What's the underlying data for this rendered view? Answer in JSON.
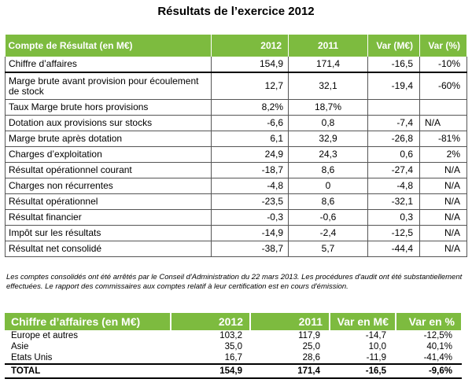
{
  "title": "Résultats de l’exercice 2012",
  "table1": {
    "headers": [
      "Compte de Résultat (en M€)",
      "2012",
      "2011",
      "Var (M€)",
      "Var (%)"
    ],
    "rows": [
      {
        "label": "Chiffre d’affaires",
        "v2012": "154,9",
        "v2011": "171,4",
        "var_m": "-16,5",
        "var_pct": "-10%"
      },
      {
        "label": "Marge brute avant provision pour écoulement de stock",
        "v2012": "12,7",
        "v2011": "32,1",
        "var_m": "-19,4",
        "var_pct": "-60%"
      },
      {
        "label": "Taux Marge brute hors provisions",
        "v2012": "8,2%",
        "v2011": "18,7%",
        "var_m": "",
        "var_pct": ""
      },
      {
        "label": "Dotation aux provisions sur stocks",
        "v2012": "-6,6",
        "v2011": "0,8",
        "var_m": "-7,4",
        "var_pct": "N/A"
      },
      {
        "label": "Marge brute après dotation",
        "v2012": "6,1",
        "v2011": "32,9",
        "var_m": "-26,8",
        "var_pct": "-81%"
      },
      {
        "label": "Charges d’exploitation",
        "v2012": "24,9",
        "v2011": "24,3",
        "var_m": "0,6",
        "var_pct": "2%"
      },
      {
        "label": "Résultat opérationnel courant",
        "v2012": "-18,7",
        "v2011": "8,6",
        "var_m": "-27,4",
        "var_pct": "N/A"
      },
      {
        "label": "Charges non récurrentes",
        "v2012": "-4,8",
        "v2011": "0",
        "var_m": "-4,8",
        "var_pct": "N/A"
      },
      {
        "label": "Résultat opérationnel",
        "v2012": "-23,5",
        "v2011": "8,6",
        "var_m": "-32,1",
        "var_pct": "N/A"
      },
      {
        "label": "Résultat financier",
        "v2012": "-0,3",
        "v2011": "-0,6",
        "var_m": "0,3",
        "var_pct": "N/A"
      },
      {
        "label": "Impôt sur les résultats",
        "v2012": "-14,9",
        "v2011": "-2,4",
        "var_m": "-12,5",
        "var_pct": "N/A"
      },
      {
        "label": "Résultat net consolidé",
        "v2012": "-38,7",
        "v2011": "5,7",
        "var_m": "-44,4",
        "var_pct": "N/A"
      }
    ]
  },
  "note": "Les comptes consolidés ont été arrêtés par le Conseil d'Administration du 22 mars 2013. Les procédures d'audit ont été substantiellement effectuées. Le rapport des commissaires aux comptes relatif à leur certification est en cours d'émission.",
  "table2": {
    "headers": [
      "Chiffre d’affaires (en M€)",
      "2012",
      "2011",
      "Var en M€",
      "Var en %"
    ],
    "rows": [
      {
        "label": "Europe et autres",
        "v2012": "103,2",
        "v2011": "117,9",
        "var_m": "-14,7",
        "var_pct": "-12,5%"
      },
      {
        "label": "Asie",
        "v2012": "35,0",
        "v2011": "25,0",
        "var_m": "10,0",
        "var_pct": "40,1%"
      },
      {
        "label": "Etats Unis",
        "v2012": "16,7",
        "v2011": "28,6",
        "var_m": "-11,9",
        "var_pct": "-41,4%"
      }
    ],
    "total": {
      "label": "TOTAL",
      "v2012": "154,9",
      "v2011": "171,4",
      "var_m": "-16,5",
      "var_pct": "-9,6%"
    }
  }
}
